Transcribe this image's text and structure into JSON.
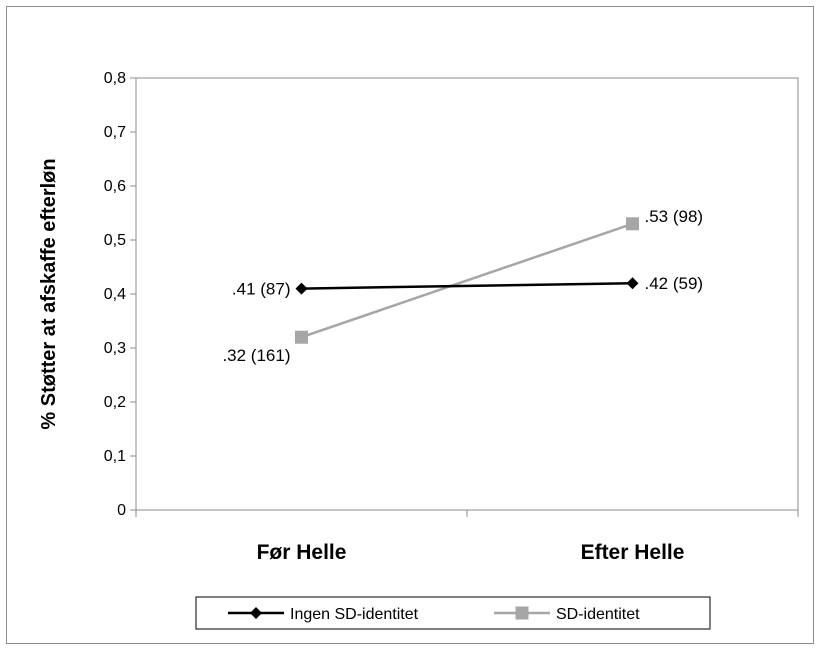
{
  "chart_data": {
    "type": "line",
    "categories": [
      "Før Helle",
      "Efter Helle"
    ],
    "series": [
      {
        "name": "Ingen SD-identitet",
        "values": [
          0.41,
          0.42
        ],
        "data_labels": [
          ".41 (87)",
          ".42 (59)"
        ],
        "color": "#000000",
        "marker": "diamond"
      },
      {
        "name": "SD-identitet",
        "values": [
          0.32,
          0.53
        ],
        "data_labels": [
          ".32 (161)",
          ".53 (98)"
        ],
        "color": "#a6a6a6",
        "marker": "square"
      }
    ],
    "ylabel": "% Støtter at afskaffe efterløn",
    "xlabel": "",
    "ylim": [
      0,
      0.8
    ],
    "yticks": [
      0,
      0.1,
      0.2,
      0.3,
      0.4,
      0.5,
      0.6,
      0.7,
      0.8
    ],
    "ytick_labels": [
      "0",
      "0,1",
      "0,2",
      "0,3",
      "0,4",
      "0,5",
      "0,6",
      "0,7",
      "0,8"
    ],
    "grid": false,
    "legend": "bottom"
  }
}
